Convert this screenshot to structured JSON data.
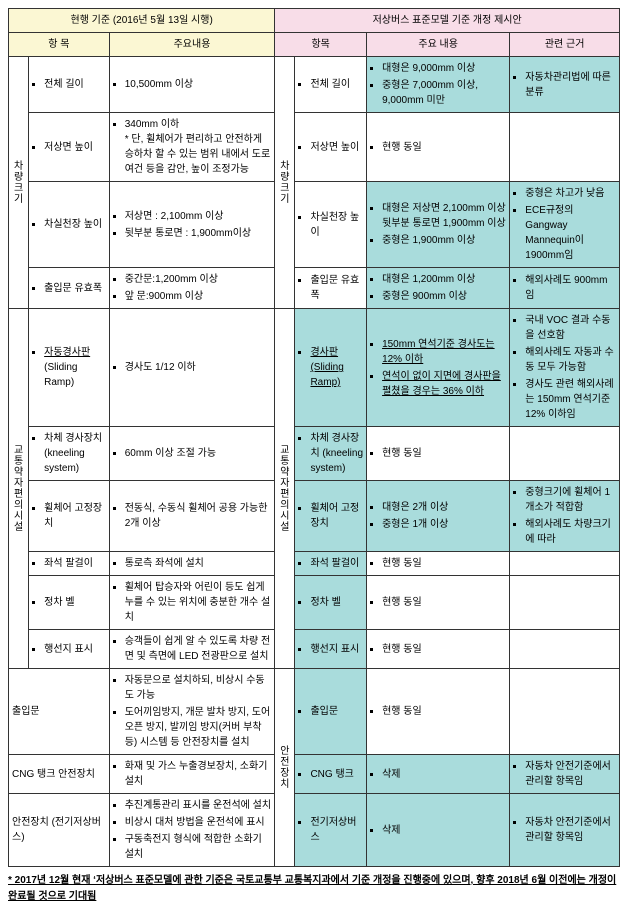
{
  "headerLeft": "현행 기준 (2016년 5월 13일 시행)",
  "headerRight": "저상버스 표준모델 기준 개정 제시안",
  "subL1": "항 목",
  "subL2": "주요내용",
  "subR1": "항목",
  "subR2": "주요 내용",
  "subR3": "관련 근거",
  "cat1": "차량크기",
  "cat2": "교통약자편의시설",
  "cat3": "안전장치",
  "rows": {
    "r1": {
      "itemL": "전체 길이",
      "cL": "10,500mm 이상",
      "itemR": "전체 길이",
      "cR1": "대형은 9,000mm 이상",
      "cR2": "중형은 7,000mm 이상, 9,000mm 미만",
      "basis": "자동차관리법에 따른 분류"
    },
    "r2": {
      "itemL": "저상면 높이",
      "cL": "340mm 이하\n* 단, 휠체어가 편리하고 안전하게 승하차 할 수 있는 범위 내에서 도로여건 등을 감안, 높이 조정가능",
      "itemR": "저상면 높이",
      "cR": "현행 동일"
    },
    "r3": {
      "itemL": "차실천장 높이",
      "cL1": "저상면 : 2,100mm 이상",
      "cL2": "뒷부분 통로면 : 1,900mm이상",
      "itemR": "차실천장 높이",
      "cR1": "대형은 저상면 2,100mm 이상 뒷부분 통로면 1,900mm 이상",
      "cR2": "중형은 1,900mm 이상",
      "b1": "중형은 차고가 낮음",
      "b2": "ECE규정의 Gangway Mannequin이 1900mm임"
    },
    "r4": {
      "itemL": "출입문 유효폭",
      "cL1": "중간문:1,200mm 이상",
      "cL2": "앞   문:900mm 이상",
      "itemR": "출입문 유효폭",
      "cR1": "대형은 1,200mm 이상",
      "cR2": "중형은 900mm 이상",
      "basis": "해외사례도 900mm임"
    },
    "r5": {
      "itemL": "자동경사판 (Sliding Ramp)",
      "cL": "경사도 1/12 이하",
      "itemR": "경사판 (Sliding Ramp)",
      "cR1": "150mm 연석기준 경사도는 12% 이하",
      "cR2": "연석이 없이 지면에 경사판을 펼쳤을 경우는 36% 이하",
      "b1": "국내 VOC 결과 수동을 선호함",
      "b2": "해외사례도 자동과 수동 모두 가능함",
      "b3": "경사도 관련 해외사례는 150mm 연석기준 12% 이하임"
    },
    "r6": {
      "itemL": "차체 경사장치 (kneeling system)",
      "cL": "60mm 이상 조절 가능",
      "itemR": "차체 경사장치 (kneeling system)",
      "cR": "현행 동일"
    },
    "r7": {
      "itemL": "휠체어 고정장치",
      "cL": "전동식, 수동식 휠체어 공용 가능한 2개 이상",
      "itemR": "휠체어 고정장치",
      "cR1": "대형은 2개 이상",
      "cR2": "중형은 1개 이상",
      "b1": "중형크기에 휠체어 1개소가 적합함",
      "b2": "해외사례도 차량크기에 따라"
    },
    "r8": {
      "itemL": "좌석 팔걸이",
      "cL": "통로측 좌석에 설치",
      "itemR": "좌석 팔걸이",
      "cR": "현행 동일"
    },
    "r9": {
      "itemL": "정차 벨",
      "cL": "휠체어 탑승자와 어린이 등도 쉽게 누를 수 있는 위치에 충분한 개수 설치",
      "itemR": "정차 벨",
      "cR": "현행 동일"
    },
    "r10": {
      "itemL": "행선지 표시",
      "cL": "승객들이 쉽게 알 수 있도록 차량 전면 및 측면에 LED 전광판으로 설치",
      "itemR": "행선지 표시",
      "cR": "현행 동일"
    },
    "r11": {
      "itemL": "출입문",
      "cL1": "자동문으로 설치하되, 비상시 수동도 가능",
      "cL2": "도어끼임방지, 개문 발차 방지, 도어 오픈 방지, 발끼임 방지(커버 부착 등) 시스템 등 안전장치를 설치",
      "itemR": "출입문",
      "cR": "현행 동일"
    },
    "r12": {
      "itemL": "CNG 탱크 안전장치",
      "cL": "화재 및 가스 누출경보장치, 소화기 설치",
      "itemR": "CNG 탱크",
      "cR": "삭제",
      "basis": "자동차 안전기준에서 관리할 항목임"
    },
    "r13": {
      "itemL": "안전장치 (전기저상버스)",
      "cL1": "추진계통관리 표시를 운전석에 설치",
      "cL2": "비상시 대처 방법을 운전석에 표시",
      "cL3": "구동축전지 형식에 적합한 소화기 설치",
      "itemR": "전기저상버스",
      "cR": "삭제",
      "basis": "자동차 안전기준에서 관리할 항목임"
    }
  },
  "footnote": "* 2017년 12월 현재 ‘저상버스 표준모델에 관한 기준은 국토교통부 교통복지과에서 기준 개정을 진행중에 있으며, 향후 2018년 6월 이전에는 개정이 완료될 것으로 기대됨"
}
